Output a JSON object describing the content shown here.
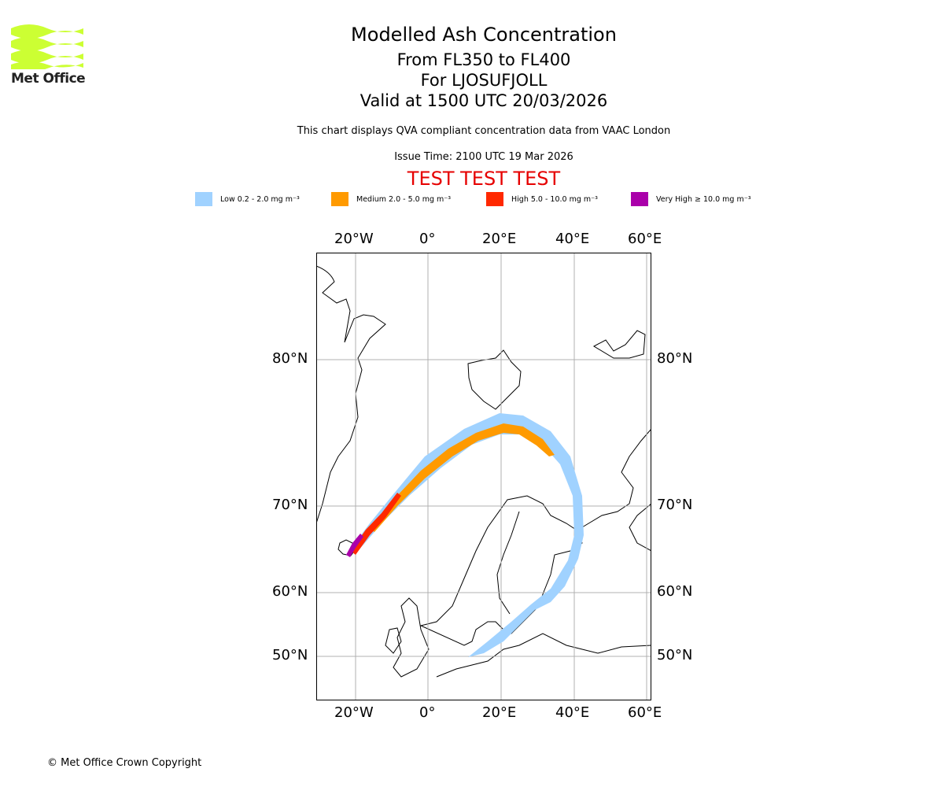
{
  "logo": {
    "text": "Met Office",
    "color": "#ccff33"
  },
  "header": {
    "title": "Modelled Ash Concentration",
    "levels": "From FL350 to FL400",
    "volcano": "For LJOSUFJOLL",
    "valid": "Valid at 1500 UTC 20/03/2026",
    "description": "This chart displays QVA compliant concentration data from VAAC London",
    "issue_time": "Issue Time: 2100 UTC 19 Mar 2026",
    "test_banner": "TEST TEST TEST"
  },
  "legend": [
    {
      "label": "Low 0.2 - 2.0 mg m⁻³",
      "color": "#a0d2ff"
    },
    {
      "label": "Medium 2.0 - 5.0 mg m⁻³",
      "color": "#ff9a00"
    },
    {
      "label": "High 5.0 - 10.0 mg m⁻³",
      "color": "#ff2800"
    },
    {
      "label": "Very High ≥ 10.0 mg m⁻³",
      "color": "#aa00aa"
    }
  ],
  "chart_data": {
    "type": "map",
    "lon_ticks": [
      "20°W",
      "0°",
      "20°E",
      "40°E",
      "60°E"
    ],
    "lat_ticks": [
      "80°N",
      "70°N",
      "60°N",
      "50°N"
    ],
    "grid": true,
    "plume": "ash plume from Iceland arcing north-east over Norwegian Sea to ~75°N then south over Finland/Russia to Baltic"
  },
  "footer": {
    "copyright": "© Met Office Crown Copyright"
  }
}
